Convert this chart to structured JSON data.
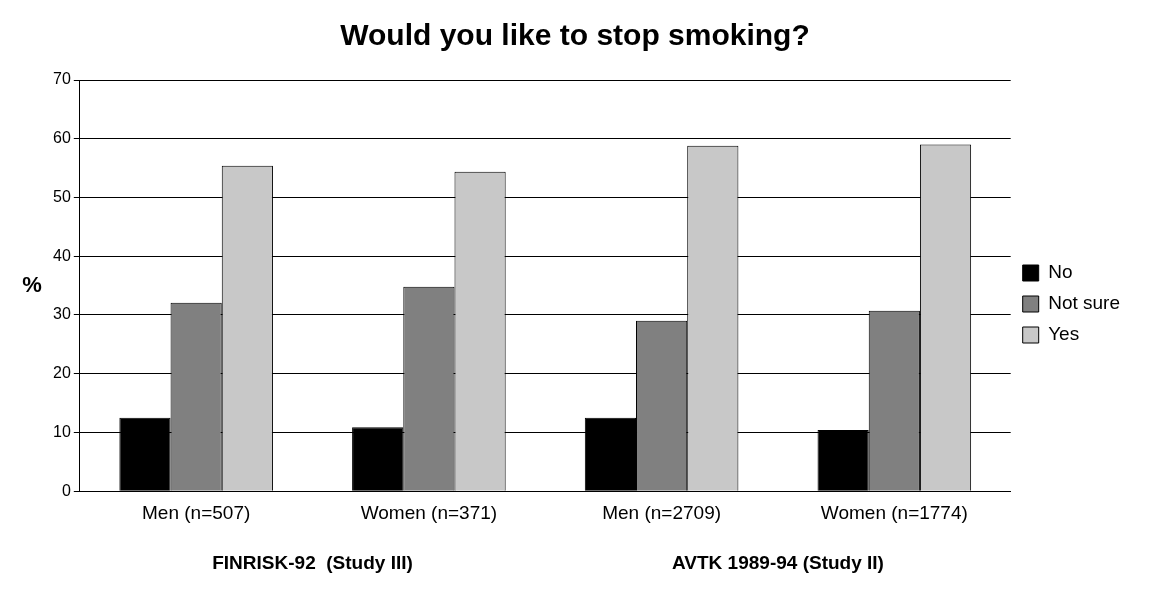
{
  "chart_data": {
    "type": "bar",
    "title": "Would you like to stop smoking?",
    "ylabel": "%",
    "categories": [
      "Men (n=507)",
      "Women (n=371)",
      "Men (n=2709)",
      "Women (n=1774)"
    ],
    "series": [
      {
        "name": "No",
        "color": "#000000",
        "values": [
          12.5,
          10.9,
          12.5,
          10.4
        ]
      },
      {
        "name": "Not sure",
        "color": "#808080",
        "values": [
          32.1,
          34.8,
          29.0,
          30.7
        ]
      },
      {
        "name": "Yes",
        "color": "#c8c8c8",
        "values": [
          55.4,
          54.4,
          58.8,
          59.0
        ]
      }
    ],
    "ylim": [
      0,
      70
    ],
    "yticks": [
      0,
      10,
      20,
      30,
      40,
      50,
      60,
      70
    ],
    "grid": "y",
    "legend": "right",
    "annotations": [
      "FINRISK-92  (Study III)",
      "AVTK 1989-94 (Study II)"
    ]
  }
}
